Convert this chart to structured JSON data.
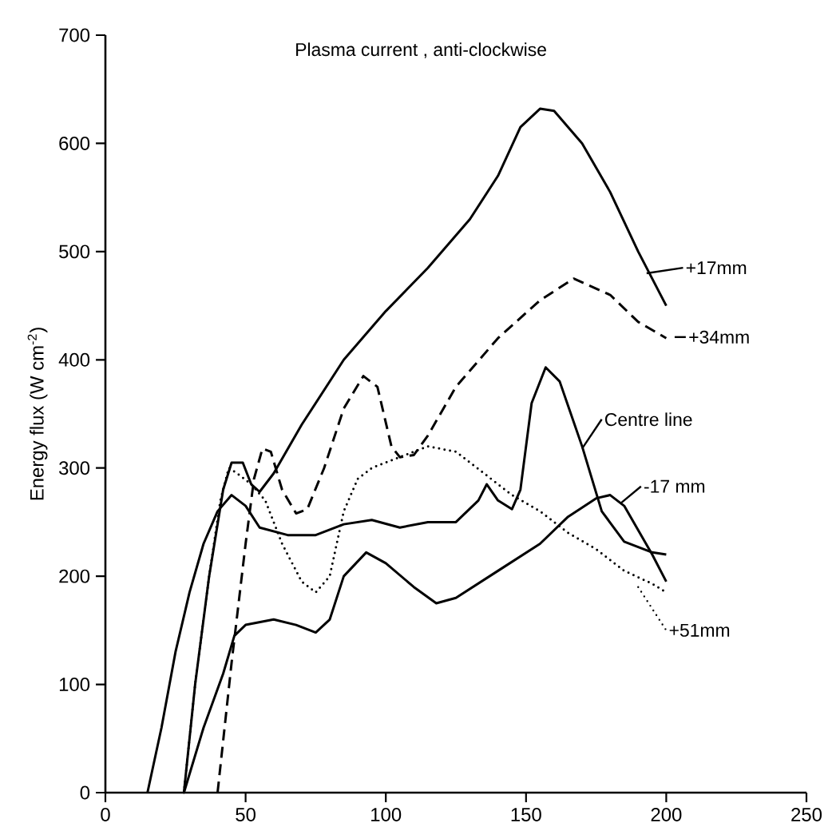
{
  "chart_data": {
    "type": "line",
    "title": "Plasma current , anti-clockwise",
    "ylabel": "Energy flux  (W cm$^{-2}$)",
    "xlim": [
      0,
      250
    ],
    "ylim": [
      0,
      700
    ],
    "xticks": [
      0,
      50,
      100,
      150,
      200,
      250
    ],
    "yticks": [
      0,
      100,
      200,
      300,
      400,
      500,
      600,
      700
    ],
    "grid": false,
    "legend": "right",
    "marker": "none",
    "series": [
      {
        "name": "+17mm",
        "color": "#000000",
        "line_style": "solid",
        "x": [
          28,
          32,
          37,
          42,
          45,
          49,
          52,
          55,
          60,
          70,
          85,
          100,
          115,
          130,
          140,
          148,
          155,
          160,
          170,
          180,
          190,
          200
        ],
        "values": [
          0,
          100,
          200,
          280,
          305,
          305,
          285,
          278,
          295,
          340,
          400,
          445,
          485,
          530,
          570,
          615,
          632,
          630,
          600,
          555,
          500,
          450
        ]
      },
      {
        "name": "+34mm",
        "color": "#000000",
        "line_style": "dashed",
        "x": [
          40,
          45,
          50,
          53,
          56,
          59,
          63,
          68,
          72,
          78,
          85,
          92,
          97,
          102,
          105,
          110,
          115,
          125,
          140,
          155,
          167,
          180,
          190,
          200
        ],
        "values": [
          0,
          120,
          230,
          290,
          318,
          315,
          280,
          258,
          262,
          300,
          355,
          385,
          375,
          320,
          310,
          312,
          330,
          375,
          420,
          455,
          475,
          460,
          435,
          420
        ]
      },
      {
        "name": "Centre line",
        "color": "#000000",
        "line_style": "solid",
        "x": [
          15,
          20,
          25,
          30,
          35,
          40,
          45,
          50,
          55,
          65,
          75,
          85,
          95,
          105,
          115,
          125,
          133,
          136,
          140,
          145,
          148,
          152,
          157,
          162,
          170,
          177,
          185,
          195,
          200
        ],
        "values": [
          0,
          60,
          130,
          185,
          230,
          260,
          275,
          265,
          245,
          238,
          238,
          248,
          252,
          245,
          250,
          250,
          270,
          285,
          270,
          262,
          280,
          360,
          393,
          380,
          320,
          260,
          232,
          222,
          220
        ]
      },
      {
        "name": "-17 mm",
        "color": "#000000",
        "line_style": "solid",
        "x": [
          28,
          35,
          42,
          46,
          50,
          60,
          68,
          75,
          80,
          85,
          93,
          100,
          110,
          118,
          125,
          140,
          155,
          165,
          175,
          180,
          185,
          195,
          200
        ],
        "values": [
          0,
          60,
          110,
          145,
          155,
          160,
          155,
          148,
          160,
          200,
          222,
          212,
          190,
          175,
          180,
          205,
          230,
          255,
          272,
          275,
          265,
          220,
          195
        ]
      },
      {
        "name": "+51mm",
        "color": "#000000",
        "line_style": "dotted",
        "x": [
          28,
          32,
          37,
          41,
          44,
          47,
          52,
          57,
          63,
          70,
          75,
          80,
          85,
          90,
          95,
          105,
          115,
          125,
          135,
          145,
          155,
          165,
          175,
          185,
          195,
          200
        ],
        "values": [
          0,
          100,
          200,
          270,
          300,
          295,
          285,
          270,
          230,
          195,
          185,
          200,
          260,
          290,
          300,
          310,
          320,
          315,
          295,
          275,
          260,
          240,
          225,
          205,
          193,
          185
        ]
      }
    ]
  }
}
